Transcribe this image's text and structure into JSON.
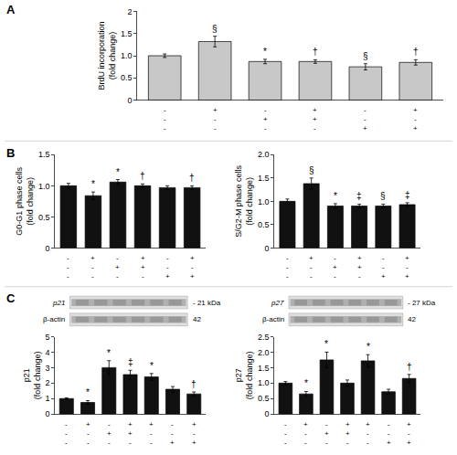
{
  "chart_data": [
    {
      "type": "bar",
      "panel_label": "A",
      "tick_labels": "y",
      "grid": false,
      "categories": [
        null,
        null,
        null,
        null,
        null,
        null
      ],
      "values": [
        1.0,
        1.32,
        0.87,
        0.87,
        0.75,
        0.85
      ],
      "errors": [
        0.04,
        0.12,
        0.05,
        0.04,
        0.07,
        0.06
      ],
      "color": "#c8c8c8",
      "ylabel": "BrdU incorporation\n(fold change)",
      "ylim": [
        0,
        2.0
      ],
      "yticks": [
        0,
        0.5,
        {
          "value": 1.0,
          "label": "1.0"
        },
        1.5,
        2
      ],
      "annotations": [
        null,
        "§",
        "*",
        "†",
        "§",
        "†"
      ],
      "treatments": {
        "TUDCA": [
          "-",
          "+",
          "-",
          "+",
          "-",
          "+"
        ],
        "CsA": [
          "-",
          "-",
          "+",
          "+",
          "-",
          "-"
        ],
        "OligA": [
          "-",
          "-",
          "-",
          "-",
          "+",
          "+"
        ]
      }
    },
    {
      "type": "bar",
      "panel_label": "B",
      "tick_labels": "y",
      "grid": false,
      "categories": [
        null,
        null,
        null,
        null,
        null,
        null
      ],
      "values": [
        1.0,
        0.84,
        1.06,
        1.0,
        0.97,
        0.97
      ],
      "errors": [
        0.04,
        0.06,
        0.04,
        0.03,
        0.03,
        0.03
      ],
      "color": "#111111",
      "ylabel": "G0-G1 phase cells\n(fold change)",
      "ylim": [
        0,
        1.5
      ],
      "yticks": [
        0,
        0.5,
        {
          "value": 1.0,
          "label": "1.0"
        },
        1.5
      ],
      "annotations": [
        null,
        "*",
        "*",
        "†",
        null,
        "†"
      ],
      "treatments": {
        "TUDCA": [
          "-",
          "+",
          "-",
          "+",
          "-",
          "+"
        ],
        "CsA": [
          "-",
          "-",
          "+",
          "+",
          "-",
          "-"
        ],
        "OligA": [
          "-",
          "-",
          "-",
          "-",
          "+",
          "+"
        ]
      }
    },
    {
      "type": "bar",
      "tick_labels": "y",
      "grid": false,
      "categories": [
        null,
        null,
        null,
        null,
        null,
        null
      ],
      "values": [
        1.0,
        1.38,
        0.9,
        0.9,
        0.9,
        0.93
      ],
      "errors": [
        0.05,
        0.12,
        0.05,
        0.04,
        0.04,
        0.04
      ],
      "color": "#111111",
      "ylabel": "S/G2-M phase cells\n(fold change)",
      "ylim": [
        0,
        2.0
      ],
      "yticks": [
        0,
        0.5,
        {
          "value": 1.0,
          "label": "1.0"
        },
        1.5,
        {
          "value": 2.0,
          "label": "2.0"
        }
      ],
      "annotations": [
        null,
        "§",
        "*",
        "‡",
        "§",
        "‡"
      ],
      "treatments": {
        "TUDCA": [
          "-",
          "+",
          "-",
          "+",
          "-",
          "+"
        ],
        "CsA": [
          "-",
          "-",
          "+",
          "+",
          "-",
          "-"
        ],
        "OligA": [
          "-",
          "-",
          "-",
          "-",
          "+",
          "+"
        ]
      }
    },
    {
      "type": "bar",
      "panel_label": "C",
      "tick_labels": "y",
      "grid": false,
      "categories": [
        null,
        null,
        null,
        null,
        null,
        null,
        null
      ],
      "values": [
        1.0,
        0.75,
        3.0,
        2.55,
        2.4,
        1.6,
        1.3
      ],
      "errors": [
        0.05,
        0.12,
        0.45,
        0.28,
        0.22,
        0.18,
        0.13
      ],
      "color": "#111111",
      "ylabel": "p21\n(fold change)",
      "ylim": [
        0,
        5
      ],
      "yticks": [
        0,
        1,
        2,
        3,
        4,
        5
      ],
      "annotations": [
        null,
        "*",
        "*",
        "‡",
        "*",
        null,
        "†"
      ],
      "treatments": {
        "TUDCA": [
          "-",
          "+",
          "-",
          "+",
          "+",
          "-",
          "+"
        ],
        "CsA": [
          "-",
          "-",
          "+",
          "+",
          "-",
          "-",
          "-"
        ],
        "OligA": [
          "-",
          "-",
          "-",
          "-",
          "-",
          "+",
          "+"
        ]
      },
      "blot": {
        "protein": "p21",
        "reference": "β-actin",
        "kda": [
          "- 21 kDa",
          "42"
        ]
      }
    },
    {
      "type": "bar",
      "tick_labels": "y",
      "grid": false,
      "categories": [
        null,
        null,
        null,
        null,
        null,
        null,
        null
      ],
      "values": [
        1.0,
        0.65,
        1.75,
        1.0,
        1.72,
        0.72,
        1.15
      ],
      "errors": [
        0.05,
        0.08,
        0.25,
        0.1,
        0.2,
        0.08,
        0.13
      ],
      "color": "#111111",
      "ylabel": "p27\n(fold change)",
      "ylim": [
        0,
        2.5
      ],
      "yticks": [
        0,
        0.5,
        {
          "value": 1.0,
          "label": "1.0"
        },
        1.5,
        {
          "value": 2.0,
          "label": "2.0"
        },
        2.5
      ],
      "annotations": [
        null,
        "*",
        "*",
        null,
        "*",
        null,
        "†"
      ],
      "treatments": {
        "TUDCA": [
          "-",
          "+",
          "-",
          "+",
          "+",
          "-",
          "+"
        ],
        "CsA": [
          "-",
          "-",
          "+",
          "+",
          "-",
          "-",
          "-"
        ],
        "OligA": [
          "-",
          "-",
          "-",
          "-",
          "-",
          "+",
          "+"
        ]
      },
      "blot": {
        "protein": "p27",
        "reference": "β-actin",
        "kda": [
          "- 27 kDa",
          "42"
        ]
      }
    }
  ]
}
